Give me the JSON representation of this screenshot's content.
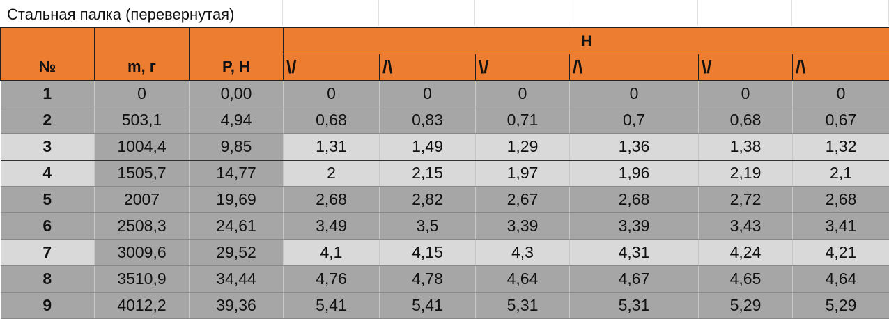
{
  "sheet": {
    "title": "Стальная палка (перевернутая)",
    "headers": {
      "number": "№",
      "mass": "m, г",
      "weight": "P, Н",
      "group": "Н",
      "sub": [
        "\\/",
        "/\\",
        "\\/",
        "/\\",
        "\\/",
        "/\\"
      ]
    },
    "rows": [
      {
        "n": "1",
        "m": "0",
        "p": "0,00",
        "v": [
          "0",
          "0",
          "0",
          "0",
          "0",
          "0"
        ]
      },
      {
        "n": "2",
        "m": "503,1",
        "p": "4,94",
        "v": [
          "0,68",
          "0,83",
          "0,71",
          "0,7",
          "0,68",
          "0,67"
        ]
      },
      {
        "n": "3",
        "m": "1004,4",
        "p": "9,85",
        "v": [
          "1,31",
          "1,49",
          "1,29",
          "1,36",
          "1,38",
          "1,32"
        ]
      },
      {
        "n": "4",
        "m": "1505,7",
        "p": "14,77",
        "v": [
          "2",
          "2,15",
          "1,97",
          "1,96",
          "2,19",
          "2,1"
        ]
      },
      {
        "n": "5",
        "m": "2007",
        "p": "19,69",
        "v": [
          "2,68",
          "2,82",
          "2,67",
          "2,68",
          "2,72",
          "2,68"
        ]
      },
      {
        "n": "6",
        "m": "2508,3",
        "p": "24,61",
        "v": [
          "3,49",
          "3,5",
          "3,39",
          "3,39",
          "3,43",
          "3,41"
        ]
      },
      {
        "n": "7",
        "m": "3009,6",
        "p": "29,52",
        "v": [
          "4,1",
          "4,15",
          "4,3",
          "4,31",
          "4,24",
          "4,21"
        ]
      },
      {
        "n": "8",
        "m": "3510,9",
        "p": "34,44",
        "v": [
          "4,76",
          "4,78",
          "4,64",
          "4,67",
          "4,65",
          "4,64"
        ]
      },
      {
        "n": "9",
        "m": "4012,2",
        "p": "39,36",
        "v": [
          "5,41",
          "5,41",
          "5,31",
          "5,31",
          "5,29",
          "5,29"
        ]
      }
    ]
  },
  "colors": {
    "header": "#ed7d31",
    "row_dark": "#a6a6a6",
    "row_light": "#d9d9d9"
  }
}
